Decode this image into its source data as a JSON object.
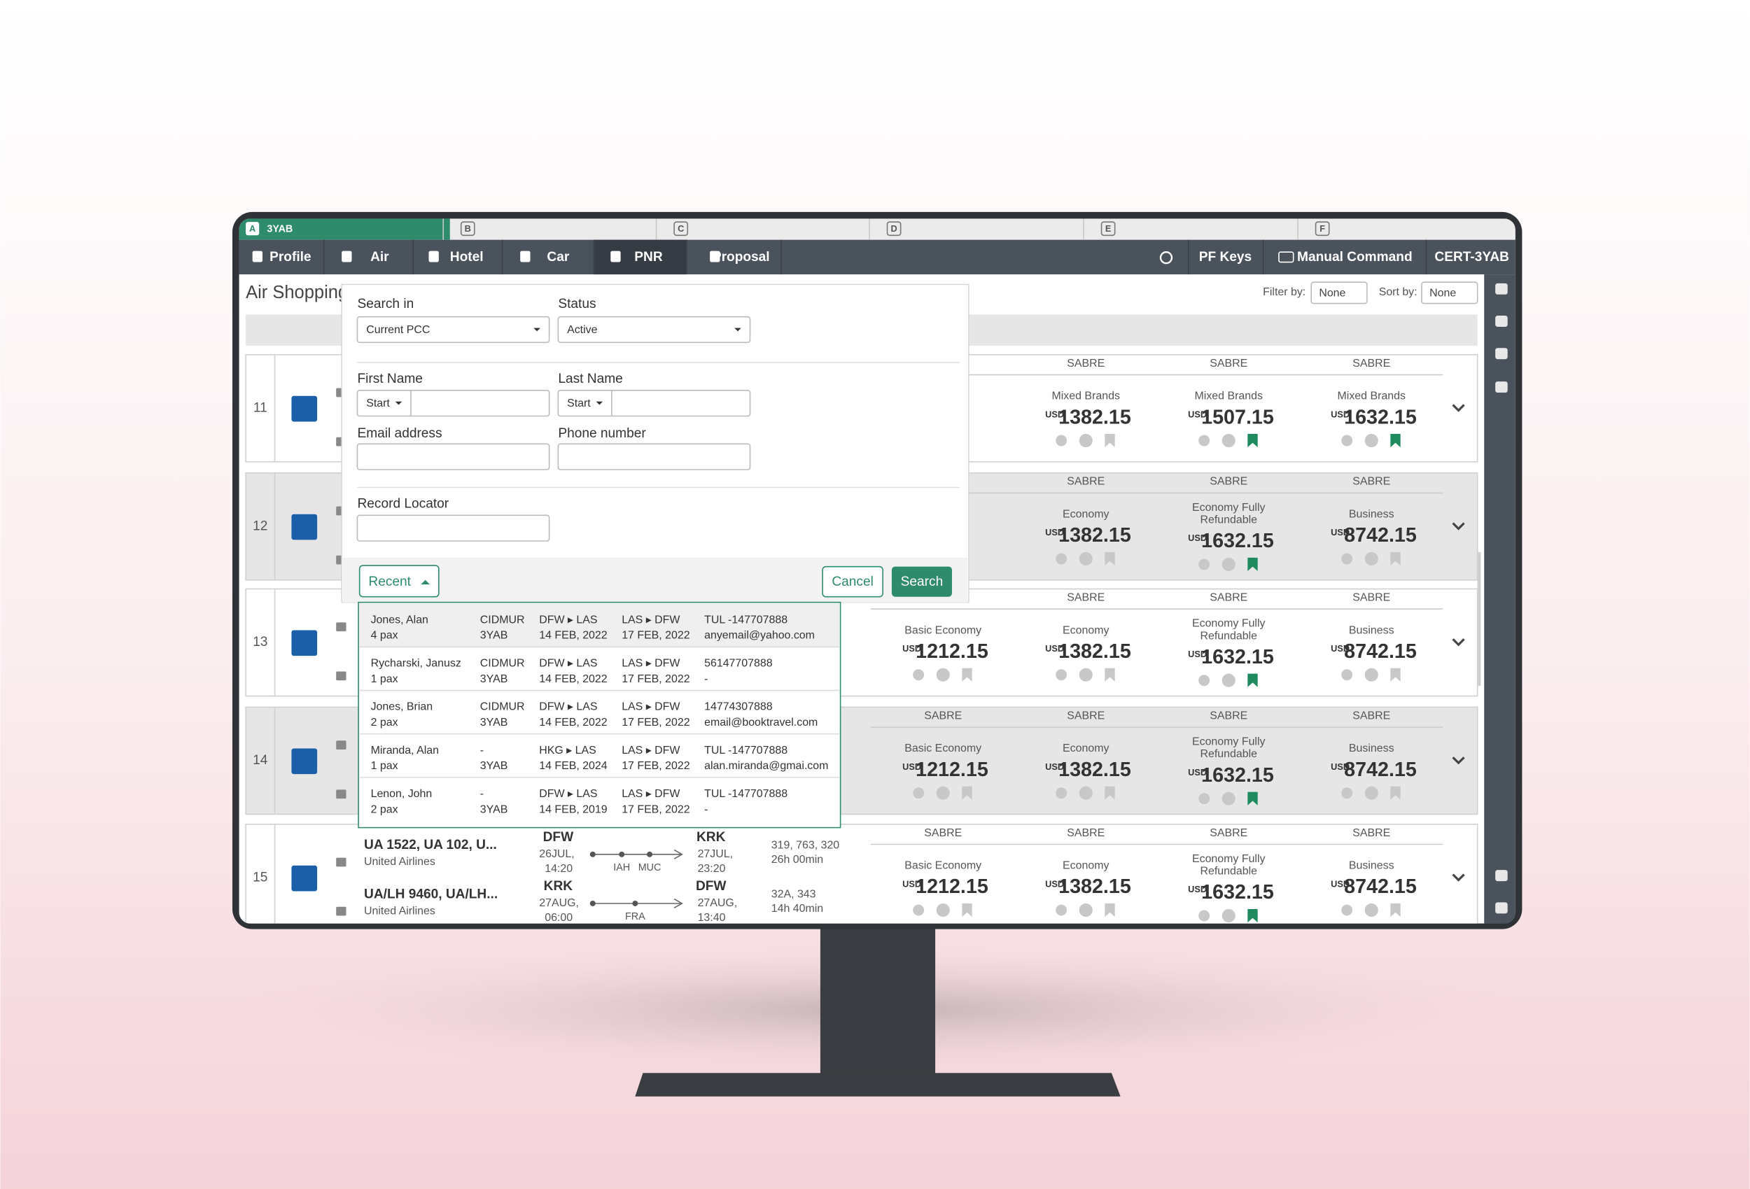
{
  "tabs": [
    {
      "letter": "A",
      "label": "3YAB"
    },
    {
      "letter": "B"
    },
    {
      "letter": "C"
    },
    {
      "letter": "D"
    },
    {
      "letter": "E"
    },
    {
      "letter": "F"
    }
  ],
  "nav": {
    "left": [
      "Profile",
      "Air",
      "Hotel",
      "Car",
      "PNR",
      "Proposal"
    ],
    "right": [
      "PF Keys",
      "Manual Command",
      "CERT-3YAB"
    ]
  },
  "header": {
    "title": "Air Shopping",
    "filter_label": "Filter by:",
    "filter_value": "None",
    "sort_label": "Sort by:",
    "sort_value": "None"
  },
  "form": {
    "search_in_label": "Search in",
    "search_in_value": "Current PCC",
    "status_label": "Status",
    "status_value": "Active",
    "first_name_label": "First Name",
    "first_name_mode": "Start",
    "last_name_label": "Last Name",
    "last_name_mode": "Start",
    "email_label": "Email address",
    "phone_label": "Phone number",
    "record_locator_label": "Record Locator",
    "recent_button": "Recent",
    "cancel_button": "Cancel",
    "search_button": "Search"
  },
  "recent": [
    {
      "name": "Jones, Alan",
      "pax": "4 pax",
      "pcc": "CIDMUR",
      "agency": "3YAB",
      "outbound": "DFW ▸ LAS",
      "outbound_date": "14 FEB, 2022",
      "return": "LAS ▸ DFW",
      "return_date": "17 FEB, 2022",
      "phone": "TUL -147707888",
      "email": "anyemail@yahoo.com"
    },
    {
      "name": "Rycharski, Janusz",
      "pax": "1 pax",
      "pcc": "CIDMUR",
      "agency": "3YAB",
      "outbound": "DFW ▸ LAS",
      "outbound_date": "14 FEB, 2022",
      "return": "LAS ▸ DFW",
      "return_date": "17 FEB, 2022",
      "phone": "56147707888",
      "email": "-"
    },
    {
      "name": "Jones, Brian",
      "pax": "2 pax",
      "pcc": "CIDMUR",
      "agency": "3YAB",
      "outbound": "DFW ▸ LAS",
      "outbound_date": "14 FEB, 2022",
      "return": "LAS ▸ DFW",
      "return_date": "17 FEB, 2022",
      "phone": "14774307888",
      "email": "email@booktravel.com"
    },
    {
      "name": "Miranda, Alan",
      "pax": "1 pax",
      "pcc": "-",
      "agency": "3YAB",
      "outbound": "HKG ▸ LAS",
      "outbound_date": "14 FEB, 2024",
      "return": "LAS ▸ DFW",
      "return_date": "17 FEB, 2022",
      "phone": "TUL -147707888",
      "email": "alan.miranda@gmai.com"
    },
    {
      "name": "Lenon, John",
      "pax": "2 pax",
      "pcc": "-",
      "agency": "3YAB",
      "outbound": "DFW ▸ LAS",
      "outbound_date": "14 FEB, 2019",
      "return": "LAS ▸ DFW",
      "return_date": "17 FEB, 2022",
      "phone": "TUL -147707888",
      "email": "-"
    }
  ],
  "results": [
    {
      "number": "11",
      "fares": [
        {
          "source": "SABRE",
          "brand": "Mixed Brands",
          "currency": "USD",
          "price": "1382.15"
        },
        {
          "source": "SABRE",
          "brand": "Mixed Brands",
          "currency": "USD",
          "price": "1507.15"
        },
        {
          "source": "SABRE",
          "brand": "Mixed Brands",
          "currency": "USD",
          "price": "1632.15"
        }
      ]
    },
    {
      "number": "12",
      "fares": [
        {
          "source": "SABRE",
          "brand": "Economy",
          "currency": "USD",
          "price": "1382.15"
        },
        {
          "source": "SABRE",
          "brand": "Economy Fully Refundable",
          "currency": "USD",
          "price": "1632.15"
        },
        {
          "source": "SABRE",
          "brand": "Business",
          "currency": "USD",
          "price": "8742.15"
        }
      ]
    },
    {
      "number": "13",
      "fares": [
        {
          "source": "SABRE",
          "brand": "Basic Economy",
          "currency": "USD",
          "price": "1212.15"
        },
        {
          "source": "SABRE",
          "brand": "Economy",
          "currency": "USD",
          "price": "1382.15"
        },
        {
          "source": "SABRE",
          "brand": "Economy Fully Refundable",
          "currency": "USD",
          "price": "1632.15"
        },
        {
          "source": "SABRE",
          "brand": "Business",
          "currency": "USD",
          "price": "8742.15"
        }
      ]
    },
    {
      "number": "14",
      "fares": [
        {
          "source": "SABRE",
          "brand": "Basic Economy",
          "currency": "USD",
          "price": "1212.15"
        },
        {
          "source": "SABRE",
          "brand": "Economy",
          "currency": "USD",
          "price": "1382.15"
        },
        {
          "source": "SABRE",
          "brand": "Economy Fully Refundable",
          "currency": "USD",
          "price": "1632.15"
        },
        {
          "source": "SABRE",
          "brand": "Business",
          "currency": "USD",
          "price": "8742.15"
        }
      ]
    },
    {
      "number": "15",
      "fares": [
        {
          "source": "SABRE",
          "brand": "Basic Economy",
          "currency": "USD",
          "price": "1212.15"
        },
        {
          "source": "SABRE",
          "brand": "Economy",
          "currency": "USD",
          "price": "1382.15"
        },
        {
          "source": "SABRE",
          "brand": "Economy Fully Refundable",
          "currency": "USD",
          "price": "1632.15"
        },
        {
          "source": "SABRE",
          "brand": "Business",
          "currency": "USD",
          "price": "8742.15"
        }
      ]
    }
  ],
  "flight_detail": [
    {
      "flights": "UA 1522, UA 102, U...",
      "airline": "United Airlines",
      "from": "DFW",
      "dep_date": "26JUL,",
      "dep_time": "14:20",
      "stops": [
        "IAH",
        "MUC"
      ],
      "to": "KRK",
      "arr_date": "27JUL,",
      "arr_time": "23:20",
      "equipment": "319, 763, 320",
      "duration": "26h 00min"
    },
    {
      "flights": "UA/LH 9460, UA/LH...",
      "airline": "United Airlines",
      "from": "KRK",
      "dep_date": "27AUG,",
      "dep_time": "06:00",
      "stops": [
        "FRA"
      ],
      "to": "DFW",
      "arr_date": "27AUG,",
      "arr_time": "13:40",
      "equipment": "32A, 343",
      "duration": "14h 40min"
    }
  ]
}
